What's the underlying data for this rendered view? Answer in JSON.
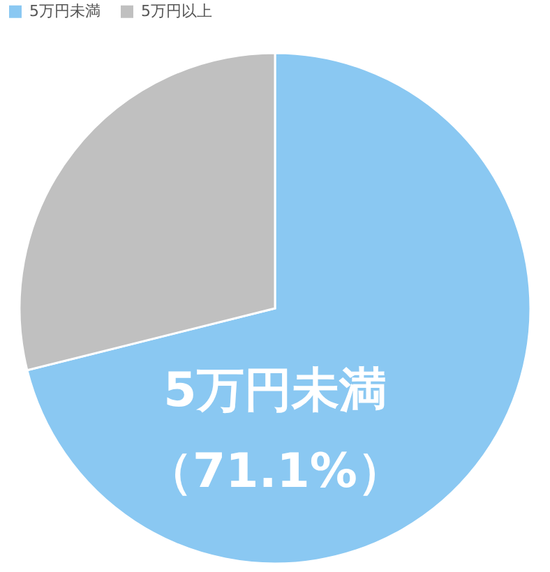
{
  "chart_data": {
    "type": "pie",
    "categories": [
      "5万円未満",
      "5万円以上"
    ],
    "values": [
      71.1,
      28.9
    ],
    "colors": [
      "#8ac8f2",
      "#c0c0c0"
    ],
    "value_labels": [
      "（71.1%）",
      null
    ],
    "legend": "top"
  }
}
